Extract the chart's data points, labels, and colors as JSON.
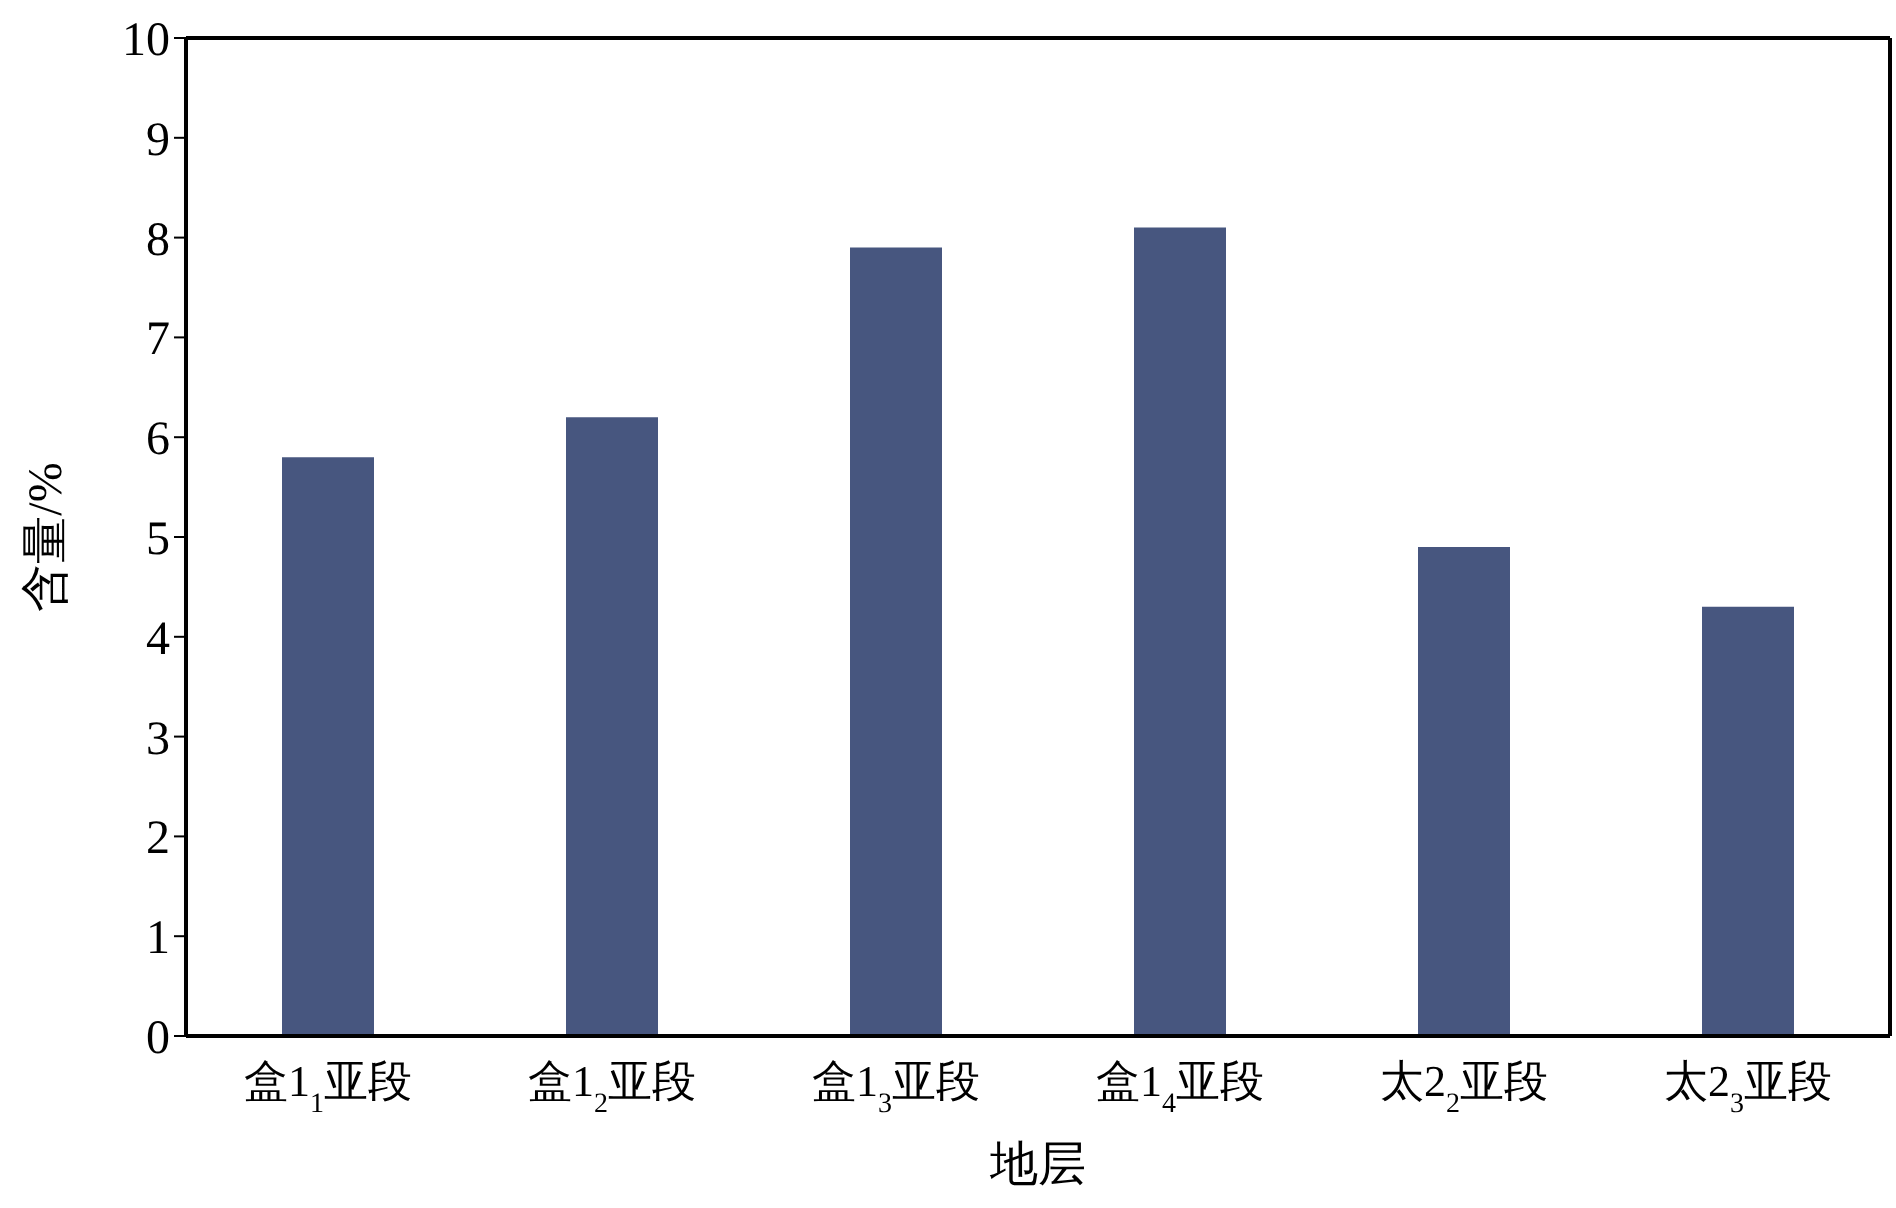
{
  "chart_data": {
    "type": "bar",
    "xlabel": "地层",
    "ylabel": "含量/%",
    "categories": [
      "盒1$_{1}$亚段",
      "盒1$_{2}$亚段",
      "盒1$_{3}$亚段",
      "盒1$_{4}$亚段",
      "太2$_{2}$亚段",
      "太2$_{3}$亚段"
    ],
    "values": [
      5.8,
      6.2,
      7.9,
      8.1,
      4.9,
      4.3
    ],
    "color": "#47567f",
    "ylim": [
      0,
      10
    ],
    "yticks": [
      0,
      1,
      2,
      3,
      4,
      5,
      6,
      7,
      8,
      9,
      10
    ],
    "grid": false,
    "legend": false
  }
}
